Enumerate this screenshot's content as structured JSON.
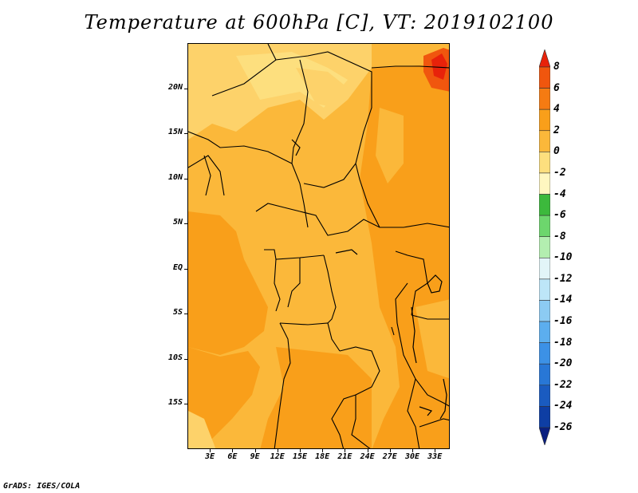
{
  "title": "Temperature at 600hPa [C], VT: 2019102100",
  "credit": "GrADS: IGES/COLA",
  "lat_labels": [
    {
      "text": "20N",
      "lat": 20
    },
    {
      "text": "15N",
      "lat": 15
    },
    {
      "text": "10N",
      "lat": 10
    },
    {
      "text": "5N",
      "lat": 5
    },
    {
      "text": "EQ",
      "lat": 0
    },
    {
      "text": "5S",
      "lat": -5
    },
    {
      "text": "10S",
      "lat": -10
    },
    {
      "text": "15S",
      "lat": -15
    }
  ],
  "lon_labels": [
    {
      "text": "3E",
      "lon": 3
    },
    {
      "text": "6E",
      "lon": 6
    },
    {
      "text": "9E",
      "lon": 9
    },
    {
      "text": "12E",
      "lon": 12
    },
    {
      "text": "15E",
      "lon": 15
    },
    {
      "text": "18E",
      "lon": 18
    },
    {
      "text": "21E",
      "lon": 21
    },
    {
      "text": "24E",
      "lon": 24
    },
    {
      "text": "27E",
      "lon": 27
    },
    {
      "text": "30E",
      "lon": 30
    },
    {
      "text": "33E",
      "lon": 33
    }
  ],
  "extent": {
    "lon_min": 0,
    "lon_max": 35,
    "lat_min": -20,
    "lat_max": 25
  },
  "colorbar": {
    "labels": [
      "8",
      "6",
      "4",
      "2",
      "0",
      "-2",
      "-4",
      "-6",
      "-8",
      "-10",
      "-12",
      "-14",
      "-16",
      "-18",
      "-20",
      "-22",
      "-24",
      "-26"
    ],
    "colors": [
      "#e8220a",
      "#f0560e",
      "#f57b12",
      "#f99f1a",
      "#fbb83a",
      "#fddf7e",
      "#fff7c0",
      "#3cb93c",
      "#6dd66d",
      "#b3eeb0",
      "#e2f5f8",
      "#bde6f8",
      "#8ccbf3",
      "#5caeee",
      "#3c91e6",
      "#2877d6",
      "#1a5bc0",
      "#0e3ea4",
      "#0a1f80"
    ]
  },
  "legend_palette": {
    "c8_6": "#e8220a",
    "c4_2": "#f99f1a",
    "c2_0": "#fbb83a",
    "c0_m2": "#fdd26a",
    "cm2_m4": "#fddf7e"
  }
}
